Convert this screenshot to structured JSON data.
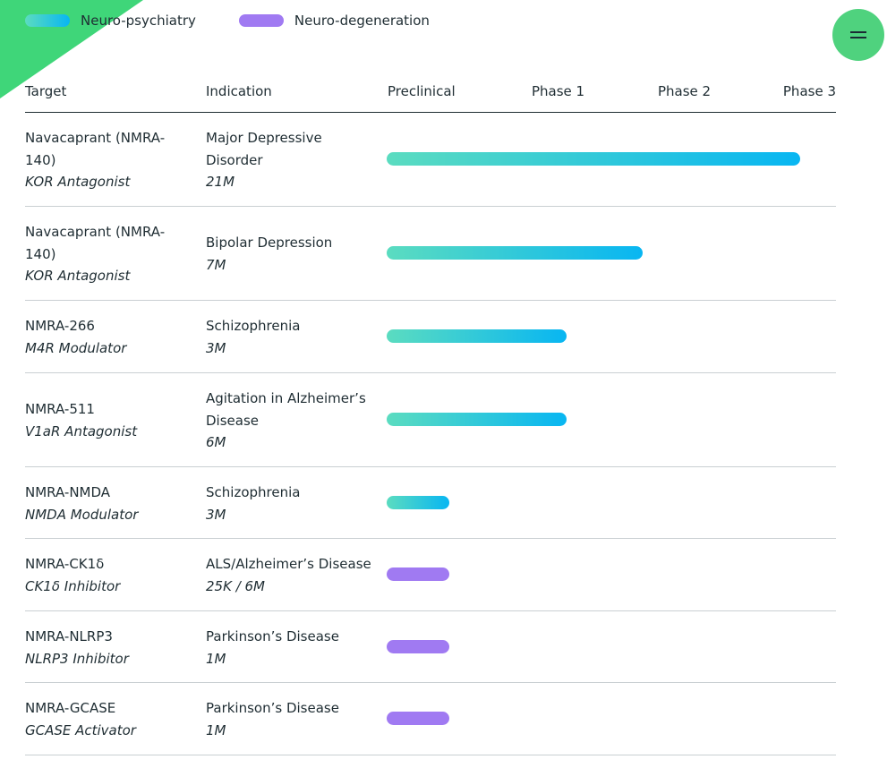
{
  "legend": [
    {
      "label": "Neuro-psychiatry",
      "color": "#08b6f2"
    },
    {
      "label": "Neuro-degeneration",
      "color": "#a07af2"
    }
  ],
  "menu": {
    "icon": "hamburger-icon"
  },
  "header": {
    "target": "Target",
    "indication": "Indication",
    "preclinical": "Preclinical",
    "phase1": "Phase 1",
    "phase2": "Phase 2",
    "phase3": "Phase 3"
  },
  "rows": [
    {
      "name": "Navacaprant (NMRA-140)",
      "mechanism": "KOR Antagonist",
      "indication": "Major Depressive Disorder",
      "population": "21M",
      "category": "psy",
      "progress": 0.92
    },
    {
      "name": "Navacaprant (NMRA-140)",
      "mechanism": "KOR Antagonist",
      "indication": "Bipolar Depression",
      "population": "7M",
      "category": "psy",
      "progress": 0.57
    },
    {
      "name": "NMRA-266",
      "mechanism": "M4R Modulator",
      "indication": "Schizophrenia",
      "population": "3M",
      "category": "psy",
      "progress": 0.4
    },
    {
      "name": "NMRA-511",
      "mechanism": "V1aR Antagonist",
      "indication": "Agitation in Alzheimer’s Disease",
      "population": "6M",
      "category": "psy",
      "progress": 0.4
    },
    {
      "name": "NMRA-NMDA",
      "mechanism": "NMDA Modulator",
      "indication": "Schizophrenia",
      "population": "3M",
      "category": "psy",
      "progress": 0.14
    },
    {
      "name": "NMRA-CK1δ",
      "mechanism": "CK1δ  Inhibitor",
      "indication": "ALS/Alzheimer’s Disease",
      "population": "25K / 6M",
      "category": "deg",
      "progress": 0.14
    },
    {
      "name": "NMRA-NLRP3",
      "mechanism": "NLRP3 Inhibitor",
      "indication": "Parkinson’s Disease",
      "population": "1M",
      "category": "deg",
      "progress": 0.14
    },
    {
      "name": "NMRA-GCASE",
      "mechanism": "GCASE Activator",
      "indication": "Parkinson’s Disease",
      "population": "1M",
      "category": "deg",
      "progress": 0.14
    }
  ]
}
